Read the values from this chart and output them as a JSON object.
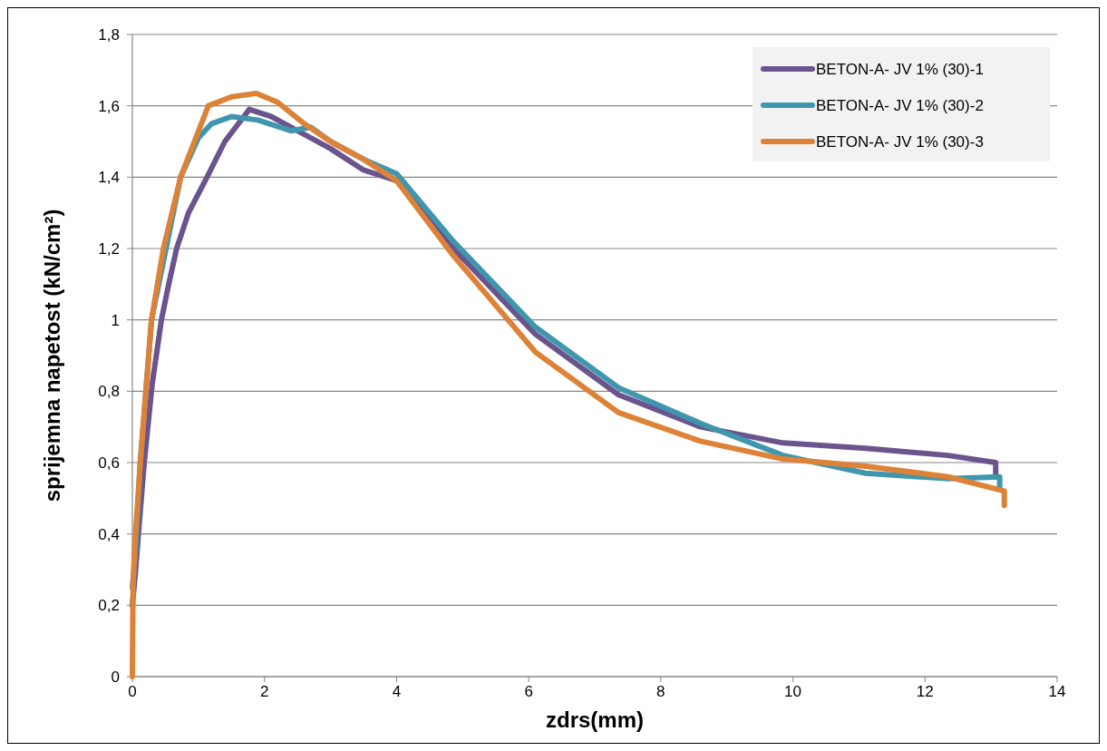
{
  "chart_data": {
    "type": "line",
    "xlabel": "zdrs(mm)",
    "ylabel": "sprijemna napetost (kN/cm²)",
    "xlim": [
      0,
      14
    ],
    "xticks": [
      0,
      2,
      4,
      6,
      8,
      10,
      12,
      14
    ],
    "ylim": [
      0,
      1.8
    ],
    "yticks": [
      0,
      {
        "value": 0.2,
        "label": "0,2"
      },
      {
        "value": 0.4,
        "label": "0,4"
      },
      {
        "value": 0.6,
        "label": "0,6"
      },
      {
        "value": 0.8,
        "label": "0,8"
      },
      1,
      {
        "value": 1.2,
        "label": "1,2"
      },
      {
        "value": 1.4,
        "label": "1,4"
      },
      {
        "value": 1.6,
        "label": "1,6"
      },
      {
        "value": 1.8,
        "label": "1,8"
      }
    ],
    "grid": "y",
    "legend": "top right",
    "line_style": "solid",
    "marker": "none",
    "series": [
      {
        "name": "BETON-A- JV 1% (30)-1",
        "color": "#6b538e",
        "x": [
          0,
          0.05,
          0.1,
          0.18,
          0.3,
          0.44,
          0.55,
          0.67,
          0.85,
          1.13,
          1.4,
          1.77,
          2.1,
          2.5,
          3,
          3.5,
          4,
          4.86,
          6.1,
          7.36,
          8.6,
          9.85,
          11.1,
          12.35,
          13.07,
          13.07
        ],
        "values": [
          0.2,
          0.3,
          0.42,
          0.6,
          0.82,
          1.0,
          1.1,
          1.2,
          1.3,
          1.4,
          1.5,
          1.59,
          1.57,
          1.53,
          1.48,
          1.42,
          1.39,
          1.2,
          0.96,
          0.79,
          0.7,
          0.655,
          0.64,
          0.62,
          0.6,
          0.57
        ]
      },
      {
        "name": "BETON-A- JV 1% (30)-2",
        "color": "#3f97ae",
        "x": [
          0,
          0.05,
          0.12,
          0.29,
          0.73,
          1.0,
          1.2,
          1.5,
          1.9,
          2.4,
          2.7,
          3,
          3.5,
          4,
          4.86,
          6.1,
          7.36,
          8.6,
          9.85,
          11.1,
          12.35,
          13.13,
          13.13
        ],
        "values": [
          0.25,
          0.35,
          0.6,
          1.0,
          1.4,
          1.51,
          1.55,
          1.57,
          1.56,
          1.53,
          1.54,
          1.5,
          1.45,
          1.41,
          1.22,
          0.98,
          0.81,
          0.71,
          0.62,
          0.57,
          0.555,
          0.56,
          0.53
        ]
      },
      {
        "name": "BETON-A- JV 1% (30)-3",
        "color": "#dd8237",
        "x": [
          0,
          0.01,
          0.03,
          0.12,
          0.29,
          0.47,
          0.73,
          1.15,
          1.5,
          1.88,
          2.2,
          2.6,
          3,
          3.5,
          4,
          4.86,
          6.1,
          7.36,
          8.6,
          9.85,
          11.1,
          12.35,
          13.2,
          13.2
        ],
        "values": [
          0,
          0.25,
          0.35,
          0.6,
          1.0,
          1.2,
          1.4,
          1.6,
          1.625,
          1.635,
          1.61,
          1.55,
          1.5,
          1.45,
          1.39,
          1.18,
          0.91,
          0.74,
          0.66,
          0.61,
          0.59,
          0.56,
          0.52,
          0.48
        ]
      }
    ]
  }
}
